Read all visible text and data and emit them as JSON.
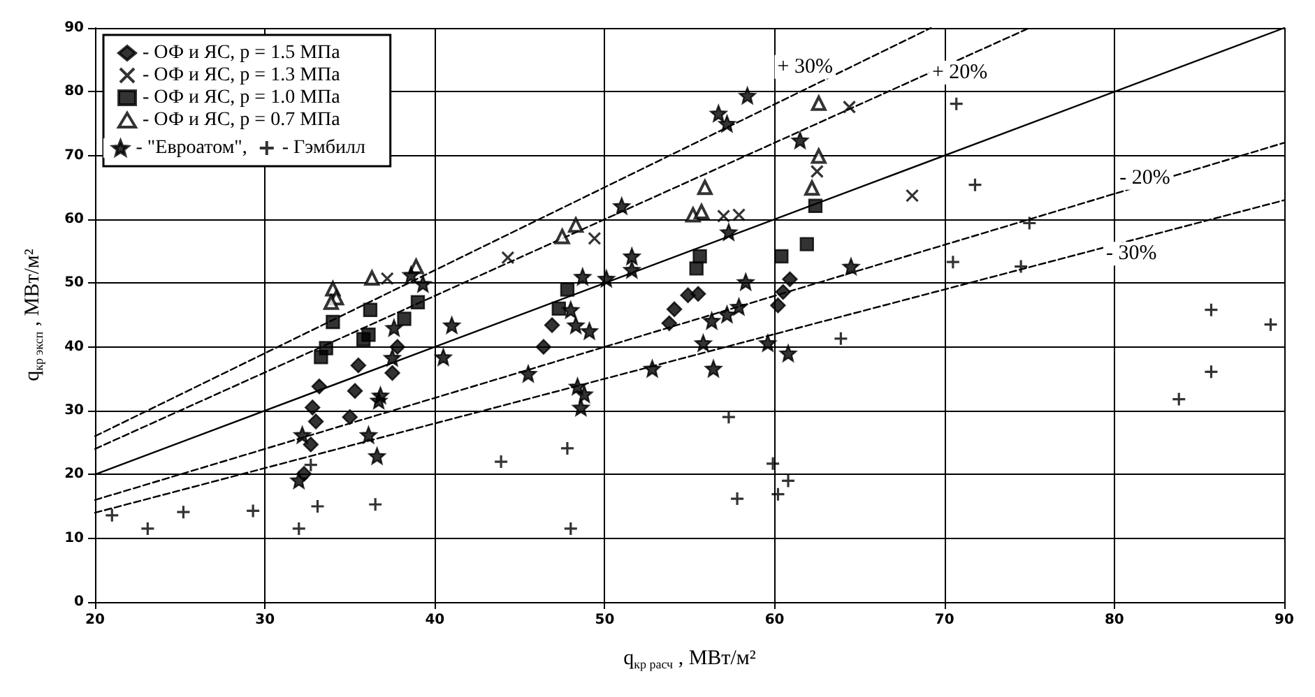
{
  "chart_data": {
    "type": "scatter",
    "xlabel": "q$_{кр расч}$ , МВт/м²",
    "ylabel": "q$_{кр эксп}$ , МВт/м²",
    "xlim": [
      20,
      90
    ],
    "ylim": [
      0,
      90
    ],
    "xticks": [
      20,
      30,
      40,
      50,
      60,
      70,
      80,
      90
    ],
    "yticks": [
      0,
      10,
      20,
      30,
      40,
      50,
      60,
      70,
      80,
      90
    ],
    "grid": true,
    "legend": "top left",
    "series": [
      {
        "name": "- ОФ и ЯС, p = 1.5 МПа",
        "color": "#000000",
        "marker": "diamond",
        "x": [
          33.2,
          32.8,
          33,
          32.7,
          32.3,
          35.5,
          35.3,
          35,
          37.8,
          37.5,
          46.4,
          46.9,
          53.8,
          54.1,
          54.9,
          55.5,
          60.2,
          60.5,
          60.9
        ],
        "values": [
          33.8,
          30.5,
          28.3,
          24.7,
          20.1,
          37.1,
          33.1,
          29,
          40,
          35.9,
          40,
          43.4,
          43.7,
          45.9,
          48.1,
          48.3,
          46.5,
          48.6,
          50.6
        ]
      },
      {
        "name": "- ОФ и ЯС, p = 1.3 МПа",
        "color": "#000000",
        "marker": "x",
        "x": [
          37.2,
          44.3,
          49.4,
          57,
          57.9,
          62.5,
          64.4,
          68.1
        ],
        "values": [
          50.7,
          54,
          57,
          60.5,
          60.7,
          67.5,
          77.6,
          63.7
        ]
      },
      {
        "name": "- ОФ и ЯС, p = 1.0 МПа",
        "color": "#000000",
        "marker": "square",
        "x": [
          34,
          33.6,
          33.3,
          36.2,
          36.1,
          35.8,
          38.2,
          39,
          47.8,
          47.3,
          55.6,
          55.4,
          60.4,
          61.9,
          62.4
        ],
        "values": [
          43.9,
          39.8,
          38.4,
          45.8,
          41.9,
          41.2,
          44.4,
          47,
          49,
          46,
          54.2,
          52.3,
          54.2,
          56.1,
          62.1
        ]
      },
      {
        "name": "- ОФ и ЯС, p = 0.7 МПа",
        "color": "#000000",
        "marker": "triangle",
        "x": [
          34,
          34.2,
          33.9,
          36.3,
          38.9,
          48.3,
          47.5,
          55.9,
          55.2,
          55.7,
          62.6,
          62.6,
          62.2
        ],
        "values": [
          49.1,
          47.7,
          47,
          50.8,
          52.6,
          59.1,
          57.3,
          65,
          60.7,
          61.2,
          78.2,
          69.9,
          64.9
        ]
      },
      {
        "name": "- \"Евроатом\",",
        "color": "#000000",
        "marker": "star",
        "x": [
          58.4,
          56.7,
          57.2,
          61.5,
          51,
          48.7,
          50.1,
          51.6,
          51.6,
          57.3,
          58.3,
          64.5,
          48,
          48.3,
          49.1,
          56.3,
          57.2,
          57.9,
          45.5,
          55.8,
          56.4,
          52.8,
          59.6,
          60.8,
          48.4,
          48.8,
          48.6,
          32.2,
          32,
          36.1,
          36.6,
          36.8,
          36.7,
          37.5,
          37.6,
          40.5,
          41,
          39.3,
          38.6
        ],
        "values": [
          79.4,
          76.6,
          75,
          72.4,
          62.1,
          51,
          50.7,
          54.2,
          52.1,
          58,
          50.2,
          52.6,
          45.8,
          43.4,
          42.5,
          44.1,
          45.1,
          46.3,
          35.8,
          40.6,
          36.6,
          36.6,
          40.6,
          39,
          33.8,
          32.6,
          30.5,
          26.2,
          19.1,
          26.2,
          22.9,
          32.4,
          31.6,
          38.3,
          43,
          38.4,
          43.4,
          49.9,
          51.3
        ]
      },
      {
        "name": "- Гэмбилл",
        "color": "#000000",
        "marker": "cross",
        "x": [
          21,
          23.1,
          25.2,
          29.3,
          32,
          33.1,
          36.5,
          32.7,
          43.9,
          47.8,
          48,
          57.3,
          57.8,
          59.9,
          60.8,
          60.2,
          63.9,
          70.7,
          71.8,
          75,
          70.5,
          74.5,
          85.7,
          89.2,
          85.7,
          83.8
        ],
        "values": [
          13.6,
          11.5,
          14.1,
          14.3,
          11.5,
          15,
          15.3,
          21.5,
          22,
          24.1,
          11.5,
          29,
          16.2,
          21.7,
          19,
          16.9,
          41.3,
          78.1,
          65.4,
          59.4,
          53.3,
          52.6,
          45.8,
          43.5,
          36.1,
          31.8
        ]
      },
      {
        "type": "line",
        "color": "#000000",
        "marker": "none",
        "line_style": "solid",
        "x": [
          20,
          90
        ],
        "values": [
          20,
          90
        ]
      },
      {
        "type": "line",
        "color": "#000000",
        "marker": "none",
        "line_style": "dashed",
        "x": [
          20,
          69.2
        ],
        "values": [
          26,
          90
        ]
      },
      {
        "type": "line",
        "color": "#000000",
        "marker": "none",
        "line_style": "dashed",
        "x": [
          20,
          75
        ],
        "values": [
          24,
          90
        ]
      },
      {
        "type": "line",
        "color": "#000000",
        "marker": "none",
        "line_style": "dashed",
        "x": [
          20,
          90
        ],
        "values": [
          16,
          72
        ]
      },
      {
        "type": "line",
        "color": "#000000",
        "marker": "none",
        "line_style": "dashed",
        "x": [
          20,
          90
        ],
        "values": [
          14,
          63
        ]
      }
    ],
    "annotations": [
      {
        "text": "+ 30%",
        "x": 61.8,
        "y": 83.9
      },
      {
        "text": "+ 20%",
        "x": 70.9,
        "y": 83
      },
      {
        "text": "- 20%",
        "x": 81.8,
        "y": 66.5
      },
      {
        "text": "- 30%",
        "x": 81,
        "y": 54.6
      }
    ]
  }
}
